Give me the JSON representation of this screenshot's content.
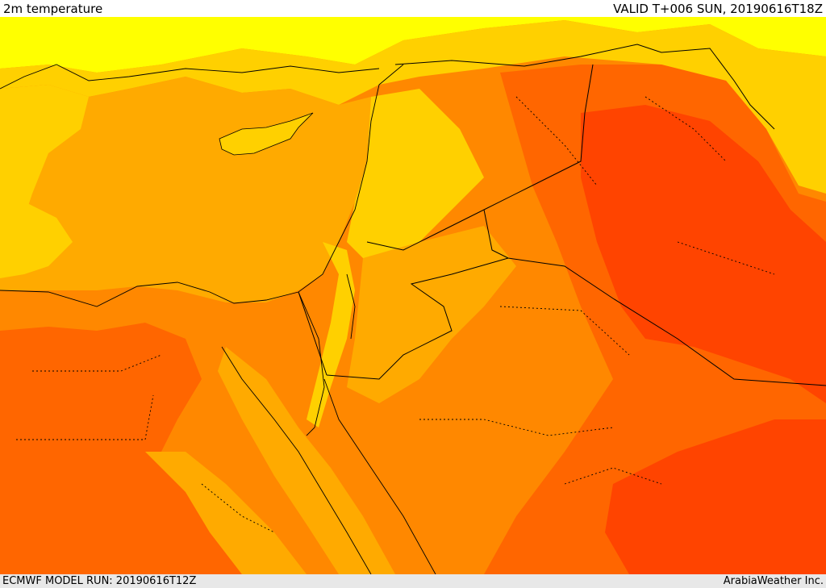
{
  "header": {
    "title": "2m temperature",
    "valid": "VALID T+006 SUN, 20190616T18Z"
  },
  "footer": {
    "model_run": "ECMWF MODEL RUN: 20190616T12Z",
    "credit": "ArabiaWeather Inc."
  },
  "palette": {
    "lightest": "#ffff00",
    "light": "#ffd000",
    "mid": "#ffaa00",
    "warm": "#ff8800",
    "hot": "#ff6600",
    "hotter": "#ff4400"
  }
}
